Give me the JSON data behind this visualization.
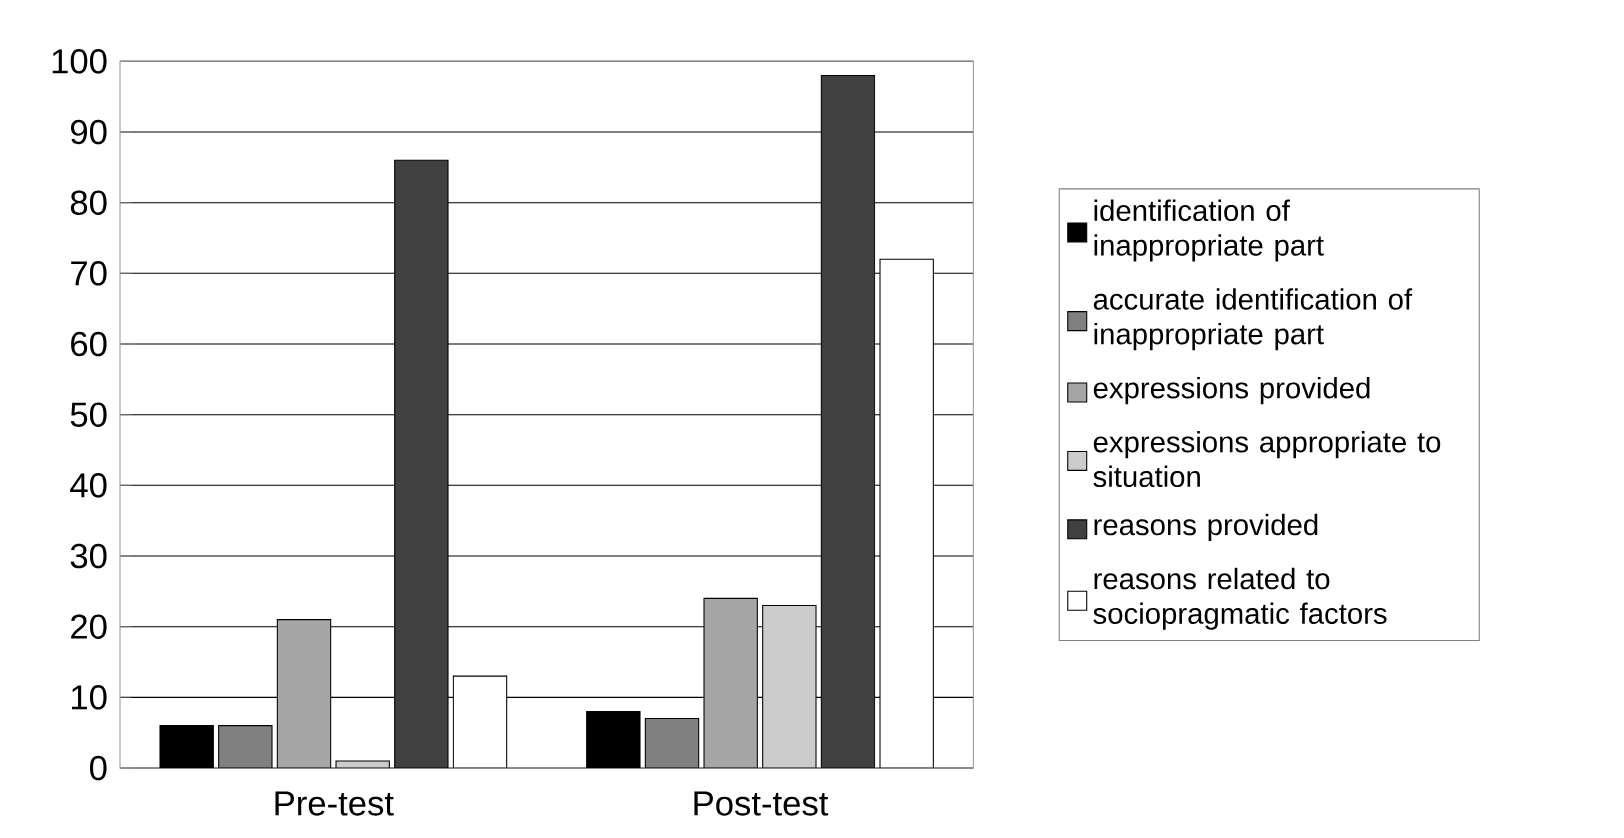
{
  "chart_data": {
    "type": "bar",
    "categories": [
      "Pre-test",
      "Post-test"
    ],
    "series": [
      {
        "name": "identification of inappropriate part",
        "color": "#000000",
        "values": [
          6,
          8
        ]
      },
      {
        "name": "accurate identification of inappropriate part",
        "color": "#808080",
        "values": [
          6,
          7
        ]
      },
      {
        "name": "expressions provided",
        "color": "#a6a6a6",
        "values": [
          21,
          24
        ]
      },
      {
        "name": "expressions appropriate to situation",
        "color": "#cccccc",
        "values": [
          1,
          23
        ]
      },
      {
        "name": "reasons provided",
        "color": "#404040",
        "values": [
          86,
          98
        ]
      },
      {
        "name": "reasons related to sociopragmatic factors",
        "color": "#ffffff",
        "values": [
          13,
          72
        ]
      }
    ],
    "ylim": [
      0,
      100
    ],
    "yticks": [
      0,
      10,
      20,
      30,
      40,
      50,
      60,
      70,
      80,
      90,
      100
    ],
    "grid": "y",
    "legend": "right"
  }
}
